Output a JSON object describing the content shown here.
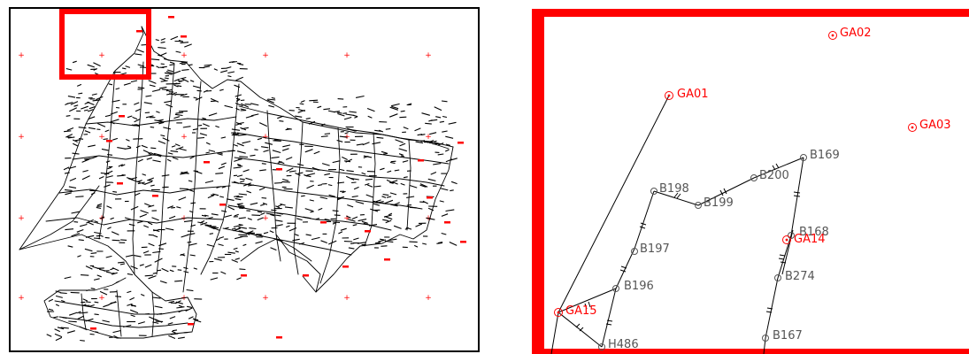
{
  "colors": {
    "network_line": "#000000",
    "control_point": "#ff0000",
    "grid_mark": "#ff0000",
    "highlight_frame": "#ff0000",
    "station_label": "#555555"
  },
  "overview": {
    "grid_marker_symbol": "+",
    "highlight_box": "zoom-region"
  },
  "detail": {
    "control_points": [
      {
        "label": "GA01"
      },
      {
        "label": "GA02"
      },
      {
        "label": "GA03"
      },
      {
        "label": "GA14"
      },
      {
        "label": "GA15"
      }
    ],
    "stations": [
      {
        "label": "B169"
      },
      {
        "label": "B200"
      },
      {
        "label": "B198"
      },
      {
        "label": "B199"
      },
      {
        "label": "B168"
      },
      {
        "label": "B197"
      },
      {
        "label": "B274"
      },
      {
        "label": "B196"
      },
      {
        "label": "B167"
      },
      {
        "label": "H486"
      }
    ]
  }
}
